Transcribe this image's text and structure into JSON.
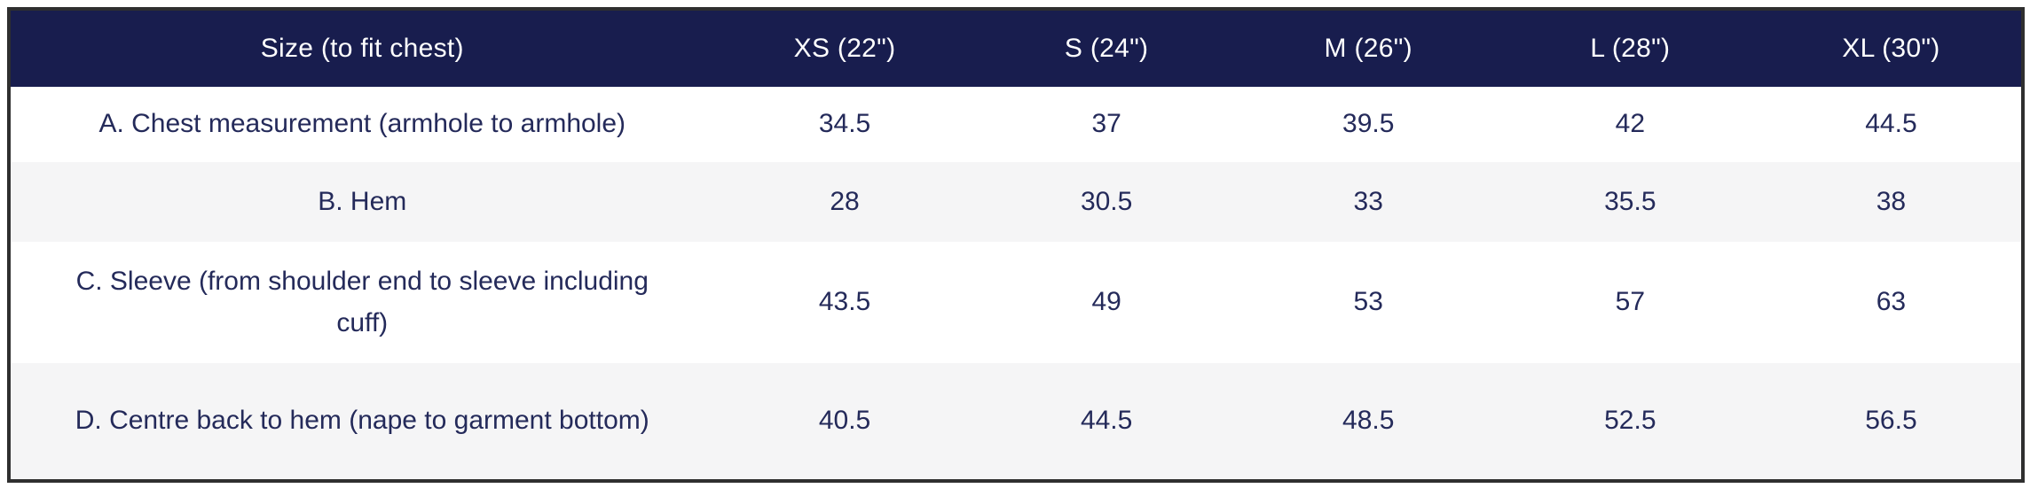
{
  "table": {
    "header": [
      "Size (to fit chest)",
      "XS (22\")",
      "S (24\")",
      "M (26\")",
      "L (28\")",
      "XL (30\")"
    ],
    "rows": [
      {
        "label": "A. Chest measurement (armhole to armhole)",
        "values": [
          "34.5",
          "37",
          "39.5",
          "42",
          "44.5"
        ]
      },
      {
        "label": "B. Hem",
        "values": [
          "28",
          "30.5",
          "33",
          "35.5",
          "38"
        ]
      },
      {
        "label": "C. Sleeve (from shoulder end to sleeve including cuff)",
        "values": [
          "43.5",
          "49",
          "53",
          "57",
          "63"
        ]
      },
      {
        "label": "D. Centre back to hem (nape to garment bottom)",
        "values": [
          "40.5",
          "44.5",
          "48.5",
          "52.5",
          "56.5"
        ]
      }
    ]
  },
  "colors": {
    "header_background": "#181d4e",
    "header_text": "#ffffff",
    "body_text": "#242a5a",
    "stripe_row": "#f5f5f6",
    "white_row": "#ffffff",
    "table_border": "#2f2f2f"
  },
  "chart_data": {
    "type": "table",
    "title": "Size (to fit chest)",
    "columns": [
      "Size (to fit chest)",
      "XS (22\")",
      "S (24\")",
      "M (26\")",
      "L (28\")",
      "XL (30\")"
    ],
    "rows": [
      {
        "measurement": "A. Chest measurement (armhole to armhole)",
        "values": [
          34.5,
          37,
          39.5,
          42,
          44.5
        ]
      },
      {
        "measurement": "B. Hem",
        "values": [
          28,
          30.5,
          33,
          35.5,
          38
        ]
      },
      {
        "measurement": "C. Sleeve (from shoulder end to sleeve including cuff)",
        "values": [
          43.5,
          49,
          53,
          57,
          63
        ]
      },
      {
        "measurement": "D. Centre back to hem (nape to garment bottom)",
        "values": [
          40.5,
          44.5,
          48.5,
          52.5,
          56.5
        ]
      }
    ]
  }
}
